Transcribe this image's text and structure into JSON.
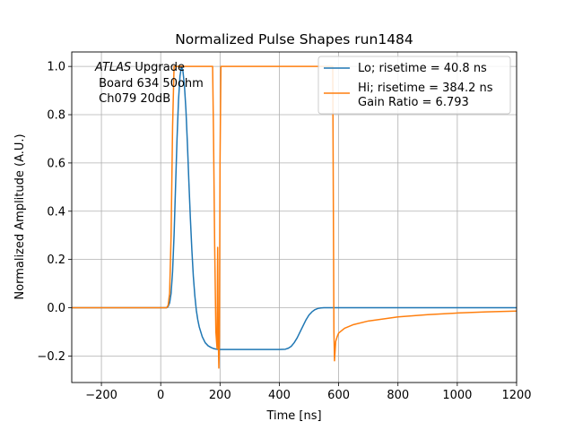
{
  "chart_data": {
    "type": "line",
    "title": "Normalized Pulse Shapes run1484",
    "xlabel": "Time [ns]",
    "ylabel": "Normalized Amplitude (A.U.)",
    "xlim": [
      -300,
      1200
    ],
    "ylim": [
      -0.31,
      1.06
    ],
    "xticks": [
      -200,
      0,
      200,
      400,
      600,
      800,
      1000,
      1200
    ],
    "xtick_labels": [
      "−200",
      "0",
      "200",
      "400",
      "600",
      "800",
      "1000",
      "1200"
    ],
    "yticks": [
      -0.2,
      0.0,
      0.2,
      0.4,
      0.6,
      0.8,
      1.0
    ],
    "ytick_labels": [
      "−0.2",
      "0.0",
      "0.2",
      "0.4",
      "0.6",
      "0.8",
      "1.0"
    ],
    "grid": true,
    "legend_position": "top-right",
    "annotation": {
      "line1_italic": "ATLAS",
      "line1_rest": " Upgrade",
      "line2": " Board 634 50ohm",
      "line3": " Ch079 20dB"
    },
    "series": [
      {
        "name": "Lo; risetime = 40.8 ns",
        "color": "#1f77b4",
        "legend_lines": [
          "Lo; risetime = 40.8 ns"
        ],
        "x": [
          -300,
          0,
          20,
          25,
          30,
          35,
          40,
          45,
          50,
          55,
          60,
          65,
          70,
          75,
          80,
          85,
          90,
          95,
          100,
          105,
          110,
          115,
          120,
          125,
          130,
          140,
          150,
          160,
          170,
          180,
          190,
          200,
          220,
          260,
          300,
          350,
          400,
          420,
          430,
          440,
          450,
          460,
          470,
          480,
          490,
          500,
          510,
          520,
          530,
          540,
          550,
          560,
          580,
          600,
          700,
          800,
          1000,
          1200
        ],
        "y": [
          0.0,
          0.0,
          0.0,
          0.005,
          0.02,
          0.06,
          0.15,
          0.3,
          0.5,
          0.7,
          0.86,
          0.96,
          1.0,
          0.98,
          0.92,
          0.82,
          0.68,
          0.52,
          0.37,
          0.24,
          0.13,
          0.05,
          -0.01,
          -0.05,
          -0.08,
          -0.12,
          -0.145,
          -0.158,
          -0.165,
          -0.17,
          -0.172,
          -0.173,
          -0.173,
          -0.173,
          -0.173,
          -0.173,
          -0.173,
          -0.172,
          -0.168,
          -0.16,
          -0.145,
          -0.125,
          -0.1,
          -0.075,
          -0.05,
          -0.03,
          -0.017,
          -0.008,
          -0.003,
          -0.001,
          0.0,
          0.0,
          0.0,
          0.0,
          0.0,
          0.0,
          0.0,
          0.0
        ]
      },
      {
        "name": "Hi; risetime = 384.2 ns",
        "color": "#ff7f0e",
        "legend_lines": [
          "Hi; risetime = 384.2 ns",
          " Gain Ratio = 6.793"
        ],
        "x": [
          -300,
          0,
          20,
          25,
          30,
          35,
          40,
          45,
          50,
          175,
          178,
          182,
          186,
          190,
          192,
          194,
          196,
          198,
          200,
          203,
          205,
          210,
          580,
          582,
          584,
          586,
          590,
          595,
          600,
          620,
          650,
          700,
          800,
          900,
          1000,
          1100,
          1200
        ],
        "y": [
          0.0,
          0.0,
          0.0,
          0.01,
          0.06,
          0.3,
          0.75,
          1.0,
          1.0,
          1.0,
          0.72,
          0.25,
          -0.1,
          -0.17,
          0.25,
          -0.12,
          -0.25,
          -0.12,
          0.6,
          1.0,
          1.0,
          1.0,
          1.0,
          0.45,
          -0.1,
          -0.22,
          -0.14,
          -0.12,
          -0.105,
          -0.085,
          -0.07,
          -0.055,
          -0.038,
          -0.029,
          -0.022,
          -0.017,
          -0.014
        ]
      }
    ]
  }
}
